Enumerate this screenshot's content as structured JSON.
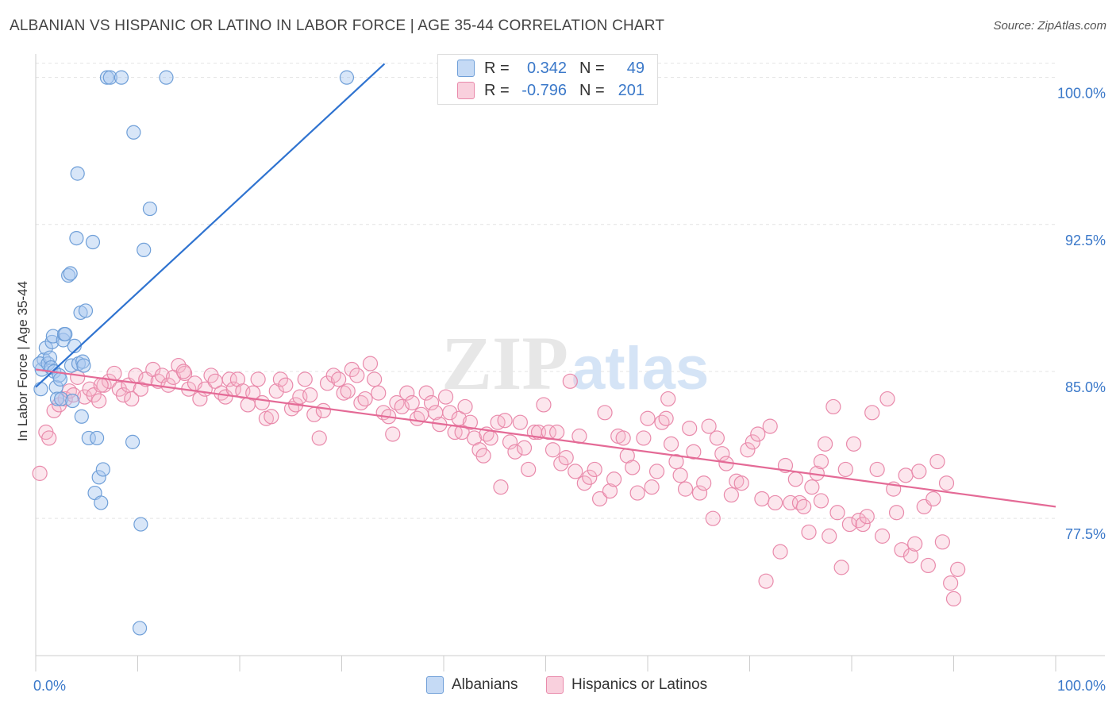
{
  "title": "ALBANIAN VS HISPANIC OR LATINO IN LABOR FORCE | AGE 35-44 CORRELATION CHART",
  "source": "Source: ZipAtlas.com",
  "watermark": {
    "zip": "ZIP",
    "atlas": "atlas"
  },
  "colors": {
    "blue_fill": "#a8c8f0",
    "blue_stroke": "#6f9fd8",
    "blue_line": "#2f73d0",
    "pink_fill": "#f5b8cc",
    "pink_stroke": "#e98aab",
    "pink_line": "#e46a96",
    "tick_label": "#3a78c9"
  },
  "legend": {
    "rows": [
      {
        "r_label": "R =",
        "r_value": "0.342",
        "n_label": "N =",
        "n_value": "49"
      },
      {
        "r_label": "R =",
        "r_value": "-0.796",
        "n_label": "N =",
        "n_value": "201"
      }
    ]
  },
  "bottom_legend": [
    "Albanians",
    "Hispanics or Latinos"
  ],
  "chart_data": {
    "type": "scatter",
    "title": "ALBANIAN VS HISPANIC OR LATINO IN LABOR FORCE | AGE 35-44 CORRELATION CHART",
    "xlabel": "",
    "ylabel": "In Labor Force | Age 35-44",
    "xlim": [
      0,
      100
    ],
    "ylim": [
      70.5,
      101.2
    ],
    "x_tick_labels": [
      {
        "value": 0,
        "label": "0.0%"
      },
      {
        "value": 100,
        "label": "100.0%"
      }
    ],
    "y_ticks": [
      {
        "value": 77.5,
        "label": "77.5%"
      },
      {
        "value": 85.0,
        "label": "85.0%"
      },
      {
        "value": 92.5,
        "label": "92.5%"
      },
      {
        "value": 100.0,
        "label": "100.0%"
      }
    ],
    "grid": true,
    "legend_position": "top-center",
    "series": [
      {
        "name": "Albanians",
        "r": 0.342,
        "n": 49,
        "trend": {
          "x": [
            0.0,
            34.2
          ],
          "y": [
            84.2,
            100.7
          ]
        },
        "points": [
          [
            0.5,
            84.1
          ],
          [
            0.6,
            85.1
          ],
          [
            0.8,
            85.6
          ],
          [
            0.4,
            85.4
          ],
          [
            1.0,
            86.2
          ],
          [
            1.2,
            85.4
          ],
          [
            1.4,
            85.7
          ],
          [
            1.5,
            85.2
          ],
          [
            1.6,
            86.5
          ],
          [
            1.7,
            86.8
          ],
          [
            1.8,
            85.0
          ],
          [
            2.0,
            84.2
          ],
          [
            2.1,
            83.6
          ],
          [
            2.3,
            84.8
          ],
          [
            2.4,
            84.6
          ],
          [
            2.5,
            83.6
          ],
          [
            2.7,
            86.6
          ],
          [
            2.8,
            86.9
          ],
          [
            2.9,
            86.9
          ],
          [
            3.2,
            89.9
          ],
          [
            3.4,
            90.0
          ],
          [
            3.5,
            85.3
          ],
          [
            3.6,
            83.5
          ],
          [
            3.8,
            86.3
          ],
          [
            4.0,
            91.8
          ],
          [
            4.2,
            85.4
          ],
          [
            4.4,
            88.0
          ],
          [
            4.6,
            85.5
          ],
          [
            4.7,
            85.3
          ],
          [
            4.5,
            82.7
          ],
          [
            4.9,
            88.1
          ],
          [
            5.2,
            81.6
          ],
          [
            5.6,
            91.6
          ],
          [
            5.8,
            78.8
          ],
          [
            6.0,
            81.6
          ],
          [
            6.2,
            79.6
          ],
          [
            6.4,
            78.3
          ],
          [
            6.6,
            80.0
          ],
          [
            7.0,
            100.0
          ],
          [
            7.3,
            100.0
          ],
          [
            8.4,
            100.0
          ],
          [
            9.6,
            97.2
          ],
          [
            9.5,
            81.4
          ],
          [
            10.3,
            77.2
          ],
          [
            10.6,
            91.2
          ],
          [
            10.2,
            71.9
          ],
          [
            11.2,
            93.3
          ],
          [
            12.8,
            100.0
          ],
          [
            30.5,
            100.0
          ],
          [
            4.1,
            95.1
          ]
        ]
      },
      {
        "name": "Hispanics or Latinos",
        "r": -0.796,
        "n": 201,
        "trend": {
          "x": [
            0.0,
            100.0
          ],
          "y": [
            85.1,
            78.1
          ]
        },
        "points": [
          [
            0.4,
            79.8
          ],
          [
            1.0,
            81.9
          ],
          [
            1.3,
            81.6
          ],
          [
            1.8,
            83.0
          ],
          [
            2.3,
            83.3
          ],
          [
            2.9,
            83.6
          ],
          [
            3.3,
            84.0
          ],
          [
            3.7,
            83.8
          ],
          [
            4.1,
            84.7
          ],
          [
            4.8,
            83.7
          ],
          [
            5.3,
            84.1
          ],
          [
            5.7,
            83.8
          ],
          [
            6.2,
            83.5
          ],
          [
            6.7,
            84.3
          ],
          [
            7.2,
            84.5
          ],
          [
            7.7,
            84.9
          ],
          [
            8.2,
            84.1
          ],
          [
            8.6,
            83.8
          ],
          [
            9.1,
            84.3
          ],
          [
            9.4,
            83.6
          ],
          [
            9.8,
            84.8
          ],
          [
            10.3,
            84.1
          ],
          [
            10.8,
            84.6
          ],
          [
            11.5,
            85.1
          ],
          [
            12.0,
            84.5
          ],
          [
            12.4,
            84.8
          ],
          [
            13.0,
            84.3
          ],
          [
            13.5,
            84.7
          ],
          [
            14.0,
            85.3
          ],
          [
            14.6,
            84.9
          ],
          [
            15.0,
            84.1
          ],
          [
            15.6,
            84.4
          ],
          [
            16.1,
            83.6
          ],
          [
            16.6,
            84.1
          ],
          [
            17.2,
            84.8
          ],
          [
            17.6,
            84.5
          ],
          [
            18.2,
            83.9
          ],
          [
            18.6,
            83.7
          ],
          [
            19.0,
            84.6
          ],
          [
            19.4,
            84.1
          ],
          [
            19.8,
            84.6
          ],
          [
            20.3,
            84.0
          ],
          [
            20.8,
            83.3
          ],
          [
            21.3,
            83.9
          ],
          [
            21.8,
            84.6
          ],
          [
            22.2,
            83.4
          ],
          [
            22.6,
            82.6
          ],
          [
            23.1,
            82.7
          ],
          [
            23.6,
            84.0
          ],
          [
            24.0,
            84.6
          ],
          [
            24.5,
            84.3
          ],
          [
            25.1,
            83.1
          ],
          [
            25.5,
            83.3
          ],
          [
            25.9,
            83.7
          ],
          [
            26.4,
            84.6
          ],
          [
            26.9,
            83.8
          ],
          [
            27.3,
            82.8
          ],
          [
            27.8,
            81.6
          ],
          [
            28.2,
            83.0
          ],
          [
            28.6,
            84.4
          ],
          [
            29.2,
            84.8
          ],
          [
            29.7,
            84.6
          ],
          [
            30.2,
            83.9
          ],
          [
            30.6,
            84.0
          ],
          [
            31.0,
            85.1
          ],
          [
            31.5,
            84.8
          ],
          [
            31.9,
            83.4
          ],
          [
            32.3,
            83.6
          ],
          [
            32.8,
            85.4
          ],
          [
            33.2,
            84.6
          ],
          [
            33.6,
            83.9
          ],
          [
            34.1,
            82.9
          ],
          [
            34.6,
            82.7
          ],
          [
            35.0,
            81.8
          ],
          [
            35.4,
            83.4
          ],
          [
            35.9,
            83.2
          ],
          [
            36.4,
            83.9
          ],
          [
            36.9,
            83.4
          ],
          [
            37.4,
            82.6
          ],
          [
            37.8,
            82.8
          ],
          [
            38.3,
            83.9
          ],
          [
            38.8,
            83.4
          ],
          [
            39.2,
            82.9
          ],
          [
            39.6,
            82.3
          ],
          [
            40.2,
            83.7
          ],
          [
            40.6,
            82.9
          ],
          [
            41.1,
            81.9
          ],
          [
            41.5,
            82.6
          ],
          [
            41.8,
            81.9
          ],
          [
            42.1,
            83.2
          ],
          [
            42.6,
            82.4
          ],
          [
            43.0,
            81.6
          ],
          [
            43.5,
            81.0
          ],
          [
            43.9,
            80.7
          ],
          [
            44.2,
            81.8
          ],
          [
            44.6,
            81.6
          ],
          [
            45.3,
            82.4
          ],
          [
            45.6,
            79.1
          ],
          [
            46.0,
            82.5
          ],
          [
            46.5,
            81.4
          ],
          [
            47.0,
            80.9
          ],
          [
            47.5,
            82.4
          ],
          [
            47.9,
            81.1
          ],
          [
            48.3,
            80.0
          ],
          [
            48.9,
            81.9
          ],
          [
            49.3,
            81.9
          ],
          [
            49.8,
            83.3
          ],
          [
            50.3,
            81.9
          ],
          [
            50.7,
            81.0
          ],
          [
            51.1,
            81.9
          ],
          [
            51.5,
            80.3
          ],
          [
            52.0,
            80.6
          ],
          [
            52.4,
            84.5
          ],
          [
            52.9,
            79.9
          ],
          [
            53.3,
            81.7
          ],
          [
            53.8,
            79.3
          ],
          [
            54.3,
            79.6
          ],
          [
            54.8,
            80.0
          ],
          [
            55.3,
            78.5
          ],
          [
            55.8,
            82.9
          ],
          [
            56.3,
            78.9
          ],
          [
            56.7,
            79.5
          ],
          [
            57.1,
            81.7
          ],
          [
            57.6,
            81.6
          ],
          [
            58.0,
            80.7
          ],
          [
            58.5,
            80.1
          ],
          [
            59.0,
            78.8
          ],
          [
            59.6,
            81.6
          ],
          [
            60.0,
            82.6
          ],
          [
            60.4,
            79.1
          ],
          [
            60.9,
            79.9
          ],
          [
            61.4,
            82.4
          ],
          [
            61.8,
            82.6
          ],
          [
            62.3,
            81.3
          ],
          [
            62.8,
            80.4
          ],
          [
            63.2,
            79.7
          ],
          [
            63.7,
            79.0
          ],
          [
            64.1,
            82.1
          ],
          [
            64.5,
            80.9
          ],
          [
            65.1,
            78.8
          ],
          [
            65.5,
            79.3
          ],
          [
            66.0,
            82.2
          ],
          [
            66.4,
            77.5
          ],
          [
            66.8,
            81.6
          ],
          [
            67.3,
            80.8
          ],
          [
            67.7,
            80.3
          ],
          [
            68.2,
            78.7
          ],
          [
            68.7,
            79.4
          ],
          [
            69.2,
            79.3
          ],
          [
            69.8,
            81.0
          ],
          [
            70.3,
            81.4
          ],
          [
            70.8,
            81.8
          ],
          [
            71.2,
            78.5
          ],
          [
            71.6,
            74.3
          ],
          [
            72.0,
            82.2
          ],
          [
            72.5,
            78.3
          ],
          [
            73.0,
            75.8
          ],
          [
            73.5,
            80.2
          ],
          [
            74.0,
            78.3
          ],
          [
            74.5,
            79.5
          ],
          [
            74.9,
            78.3
          ],
          [
            75.3,
            78.1
          ],
          [
            75.8,
            76.8
          ],
          [
            76.1,
            79.1
          ],
          [
            76.6,
            79.8
          ],
          [
            77.0,
            80.4
          ],
          [
            77.4,
            81.3
          ],
          [
            77.8,
            76.6
          ],
          [
            78.2,
            83.2
          ],
          [
            78.6,
            77.8
          ],
          [
            79.0,
            75.0
          ],
          [
            79.4,
            80.0
          ],
          [
            79.8,
            77.2
          ],
          [
            80.2,
            81.3
          ],
          [
            80.7,
            77.4
          ],
          [
            81.1,
            77.2
          ],
          [
            81.5,
            77.6
          ],
          [
            82.0,
            82.9
          ],
          [
            82.5,
            80.0
          ],
          [
            83.0,
            76.6
          ],
          [
            83.5,
            83.6
          ],
          [
            84.1,
            79.0
          ],
          [
            84.4,
            77.8
          ],
          [
            84.9,
            75.9
          ],
          [
            85.3,
            79.7
          ],
          [
            85.8,
            75.6
          ],
          [
            86.2,
            76.2
          ],
          [
            86.6,
            79.9
          ],
          [
            87.1,
            78.1
          ],
          [
            87.5,
            75.1
          ],
          [
            88.0,
            78.5
          ],
          [
            88.4,
            80.4
          ],
          [
            88.9,
            76.3
          ],
          [
            89.3,
            79.3
          ],
          [
            89.7,
            74.2
          ],
          [
            90.0,
            73.4
          ],
          [
            90.4,
            74.9
          ],
          [
            77.0,
            78.4
          ],
          [
            62.0,
            83.6
          ],
          [
            14.5,
            85.0
          ],
          [
            6.4,
            84.3
          ]
        ]
      }
    ]
  }
}
